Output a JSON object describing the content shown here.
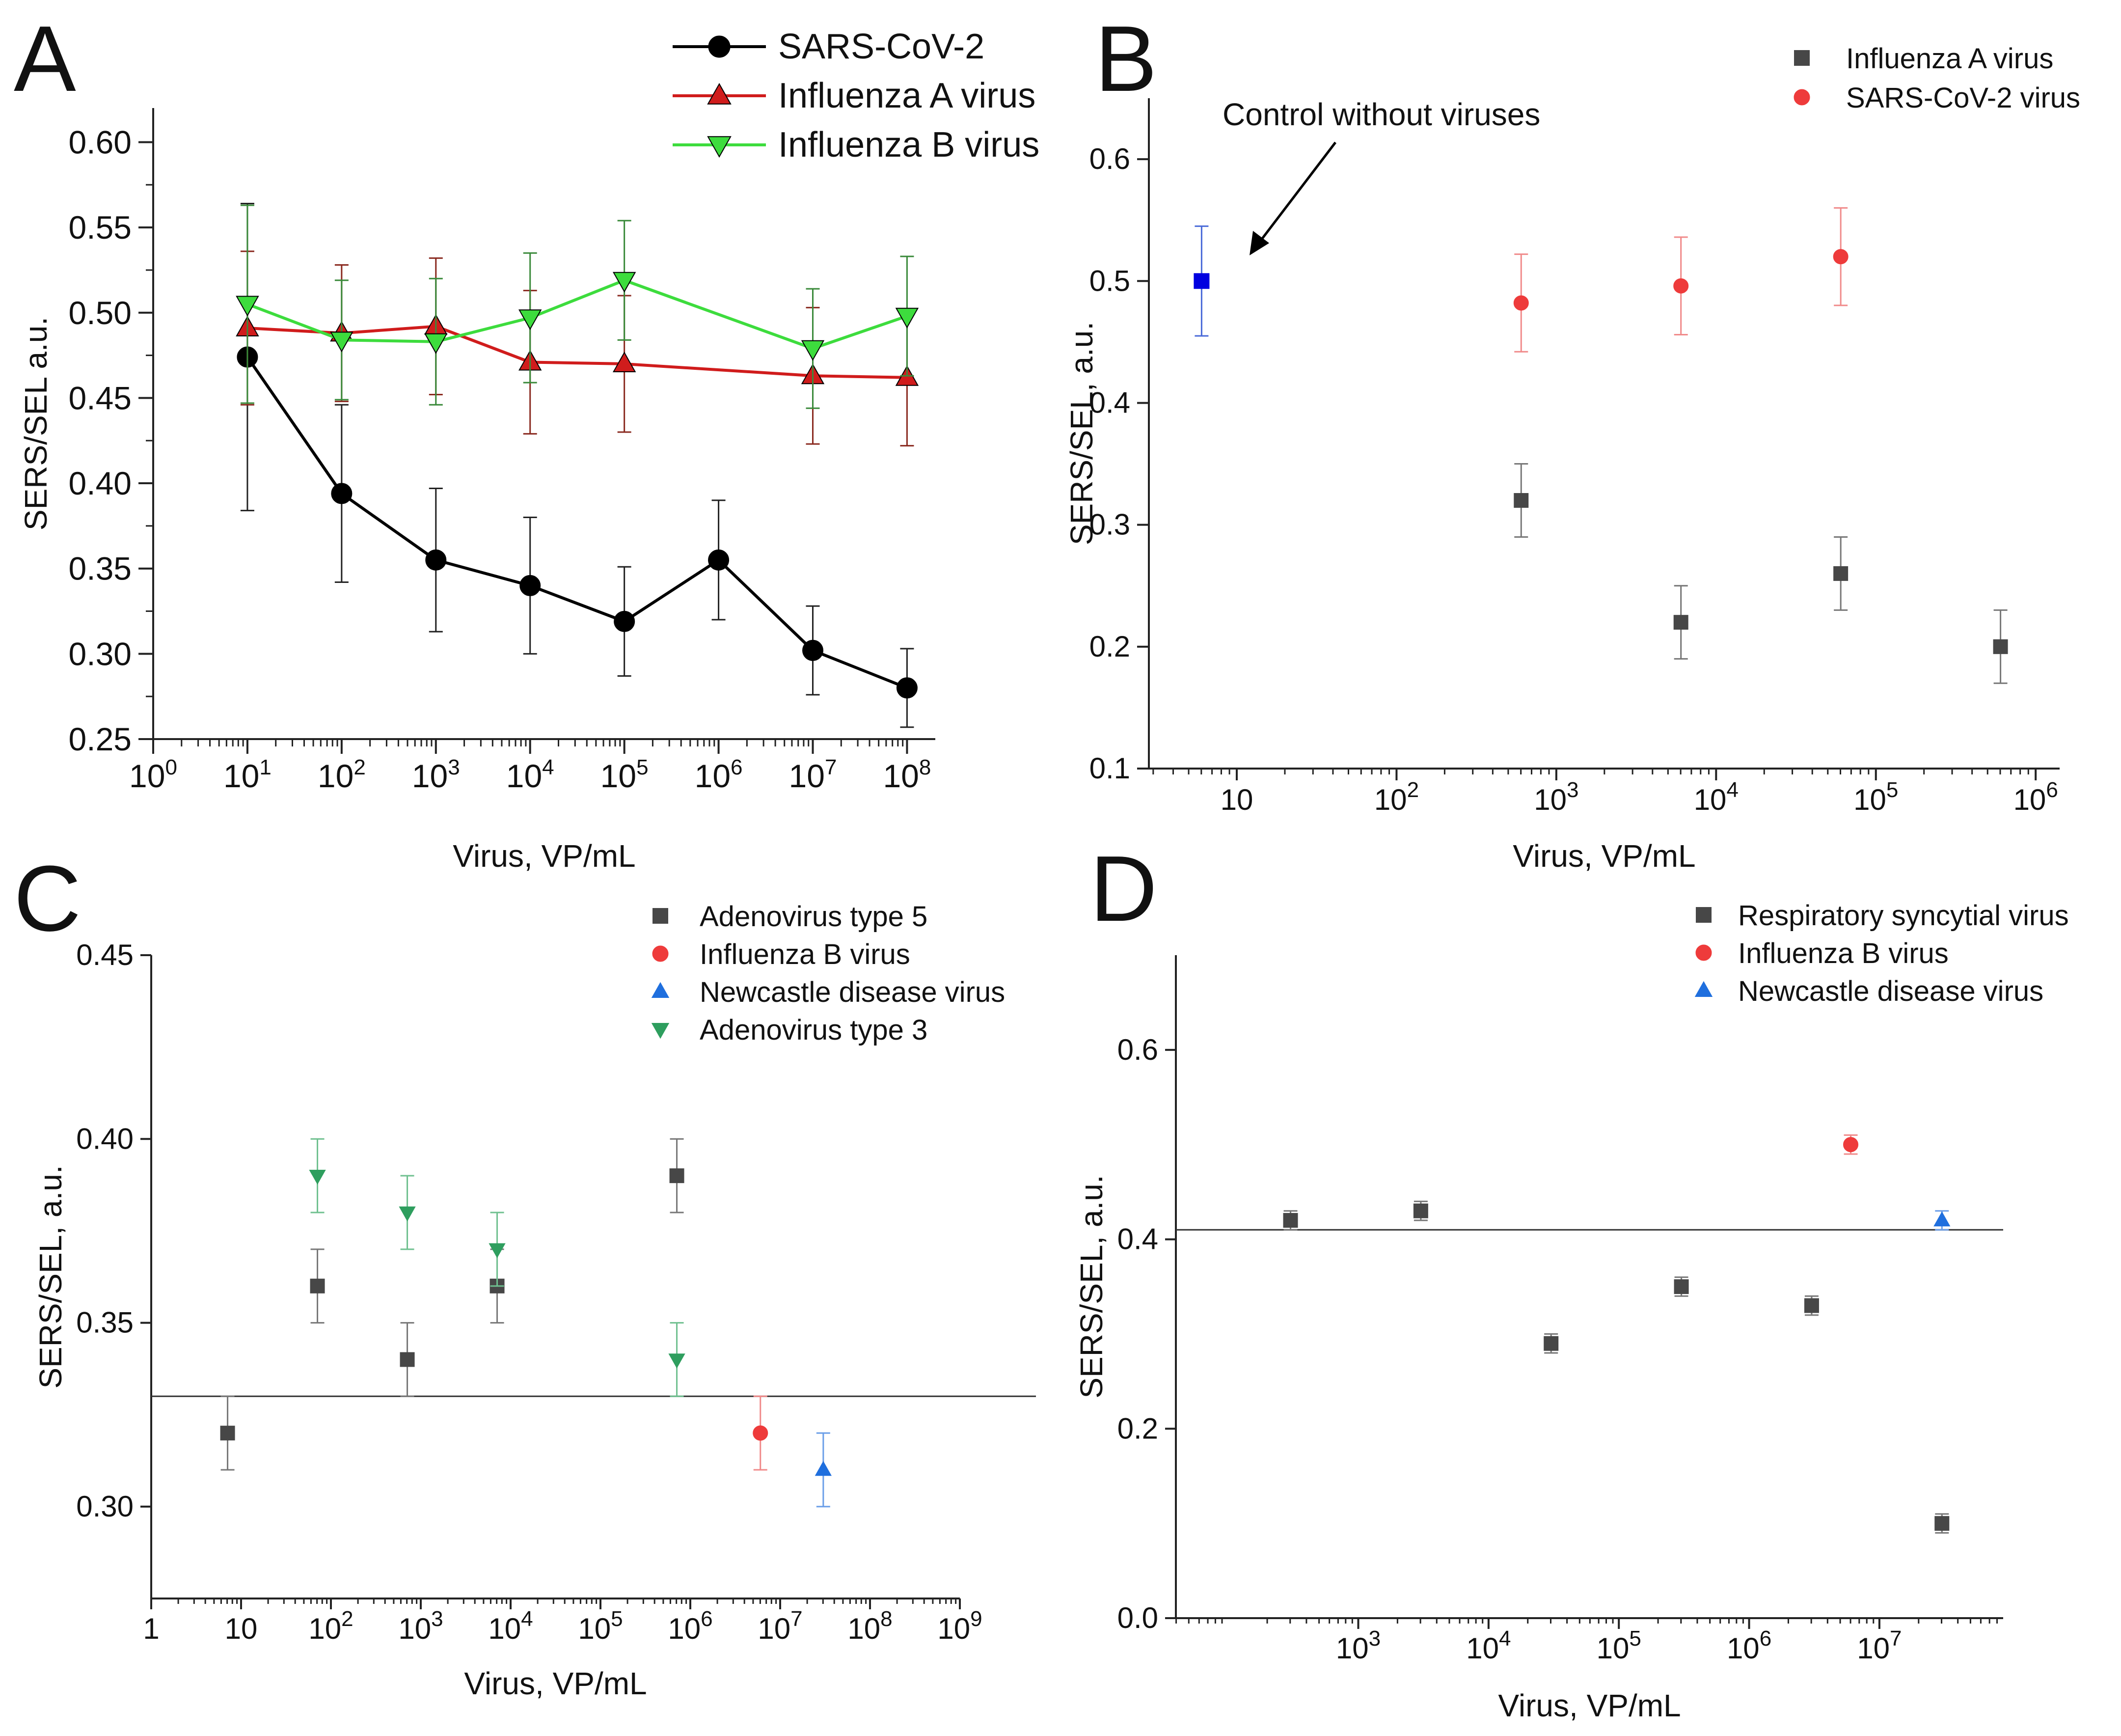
{
  "chart_data": [
    {
      "panel": "A",
      "type": "line",
      "xscale": "log10",
      "xlabel": "Virus, VP/mL",
      "ylabel": "SERS/SEL  a.u.",
      "ylim": [
        0.25,
        0.62
      ],
      "yticks": [
        0.25,
        0.3,
        0.35,
        0.4,
        0.45,
        0.5,
        0.55,
        0.6
      ],
      "ytick_labels": [
        "0.25",
        "0.30",
        "0.35",
        "0.40",
        "0.45",
        "0.50",
        "0.55",
        "0.60"
      ],
      "xticks": [
        0,
        1,
        2,
        3,
        4,
        5,
        6,
        7,
        8
      ],
      "xtick_labels": [
        "10⁰",
        "10¹",
        "10²",
        "10³",
        "10⁴",
        "10⁵",
        "10⁶",
        "10⁷",
        "10⁸"
      ],
      "legend_position": "top-right",
      "series": [
        {
          "name": "SARS-CoV-2",
          "color": "#000000",
          "marker": "circle",
          "x": [
            1,
            2,
            3,
            4,
            5,
            6,
            7,
            8
          ],
          "y": [
            0.474,
            0.394,
            0.355,
            0.34,
            0.319,
            0.355,
            0.302,
            0.28
          ],
          "err": [
            0.09,
            0.052,
            0.042,
            0.04,
            0.032,
            0.035,
            0.026,
            0.023
          ]
        },
        {
          "name": "Influenza A virus",
          "color": "#d01c1c",
          "marker": "triangle-up",
          "x": [
            1,
            2,
            3,
            4,
            5,
            7,
            8
          ],
          "y": [
            0.491,
            0.488,
            0.492,
            0.471,
            0.47,
            0.463,
            0.462
          ],
          "err": [
            0.045,
            0.04,
            0.04,
            0.042,
            0.04,
            0.04,
            0.04
          ]
        },
        {
          "name": "Influenza B virus",
          "color": "#3ddc3d",
          "marker": "triangle-down",
          "x": [
            1,
            2,
            3,
            4,
            5,
            7,
            8
          ],
          "y": [
            0.505,
            0.484,
            0.483,
            0.497,
            0.519,
            0.479,
            0.498
          ],
          "err": [
            0.058,
            0.035,
            0.037,
            0.038,
            0.035,
            0.035,
            0.035
          ]
        }
      ]
    },
    {
      "panel": "B",
      "type": "scatter",
      "xscale": "log10",
      "xlabel": "Virus, VP/mL",
      "ylabel": "SERS/SEL, a.u.",
      "xlim": [
        0.45,
        6.15
      ],
      "ylim": [
        0.1,
        0.65
      ],
      "yticks": [
        0.1,
        0.2,
        0.3,
        0.4,
        0.5,
        0.6
      ],
      "ytick_labels": [
        "0.1",
        "0.2",
        "0.3",
        "0.4",
        "0.5",
        "0.6"
      ],
      "xticks": [
        1,
        2,
        3,
        4,
        5,
        6
      ],
      "xtick_labels": [
        "10",
        "10²",
        "10³",
        "10⁴",
        "10⁵",
        "10⁶"
      ],
      "annotation": "Control without viruses",
      "control": {
        "x": 0.78,
        "y": 0.5,
        "err": 0.045,
        "color": "#0000e0",
        "marker": "square"
      },
      "legend_position": "top-right",
      "series": [
        {
          "name": "Influenza A virus",
          "color": "#474747",
          "marker": "square",
          "x": [
            2.78,
            3.78,
            4.78,
            5.78
          ],
          "y": [
            0.32,
            0.22,
            0.26,
            0.2
          ],
          "err": [
            0.03,
            0.03,
            0.03,
            0.03
          ]
        },
        {
          "name": "SARS-CoV-2 virus",
          "color": "#ee3b3b",
          "marker": "circle",
          "x": [
            2.78,
            3.78,
            4.78
          ],
          "y": [
            0.482,
            0.496,
            0.52
          ],
          "err": [
            0.04,
            0.04,
            0.04
          ]
        }
      ]
    },
    {
      "panel": "C",
      "type": "scatter",
      "xscale": "log10",
      "xlabel": "Virus, VP/mL",
      "ylabel": "SERS/SEL, a.u.",
      "xlim": [
        0,
        9
      ],
      "ylim": [
        0.275,
        0.45
      ],
      "yticks": [
        0.3,
        0.35,
        0.4,
        0.45
      ],
      "ytick_labels": [
        "0.30",
        "0.35",
        "0.40",
        "0.45"
      ],
      "xticks": [
        0,
        1,
        2,
        3,
        4,
        5,
        6,
        7,
        8,
        9
      ],
      "xtick_labels": [
        "1",
        "10",
        "10²",
        "10³",
        "10⁴",
        "10⁵",
        "10⁶",
        "10⁷",
        "10⁸",
        "10⁹"
      ],
      "reference_line": 0.33,
      "legend_position": "top-right",
      "series": [
        {
          "name": "Adenovirus type 5",
          "color": "#474747",
          "marker": "square",
          "x": [
            0.85,
            1.85,
            2.85,
            3.85,
            5.85
          ],
          "y": [
            0.32,
            0.36,
            0.34,
            0.36,
            0.39
          ],
          "err": [
            0.01,
            0.01,
            0.01,
            0.01,
            0.01
          ]
        },
        {
          "name": "Influenza B virus",
          "color": "#ee3b3b",
          "marker": "circle",
          "x": [
            6.78
          ],
          "y": [
            0.32
          ],
          "err": [
            0.01
          ]
        },
        {
          "name": "Newcastle disease virus",
          "color": "#1f6fde",
          "marker": "triangle-up",
          "x": [
            7.48
          ],
          "y": [
            0.31
          ],
          "err": [
            0.01
          ]
        },
        {
          "name": "Adenovirus type 3",
          "color": "#2e9e5e",
          "marker": "triangle-down",
          "x": [
            1.85,
            2.85,
            3.85,
            5.85
          ],
          "y": [
            0.39,
            0.38,
            0.37,
            0.34
          ],
          "err": [
            0.01,
            0.01,
            0.01,
            0.01
          ]
        }
      ]
    },
    {
      "panel": "D",
      "type": "scatter",
      "xscale": "log10",
      "xlabel": "Virus, VP/mL",
      "ylabel": "SERS/SEL, a.u.",
      "xlim": [
        1.6,
        7.95
      ],
      "ylim": [
        0.0,
        0.7
      ],
      "yticks": [
        0.0,
        0.2,
        0.4,
        0.6
      ],
      "ytick_labels": [
        "0.0",
        "0.2",
        "0.4",
        "0.6"
      ],
      "xticks": [
        3,
        4,
        5,
        6,
        7
      ],
      "xtick_labels": [
        "10³",
        "10⁴",
        "10⁵",
        "10⁶",
        "10⁷"
      ],
      "reference_line": 0.41,
      "legend_position": "top-right",
      "series": [
        {
          "name": "Respiratory syncytial virus",
          "color": "#474747",
          "marker": "square",
          "x": [
            2.48,
            3.48,
            4.48,
            5.48,
            6.48,
            7.48
          ],
          "y": [
            0.42,
            0.43,
            0.29,
            0.35,
            0.33,
            0.1
          ],
          "err": [
            0.01,
            0.01,
            0.01,
            0.01,
            0.01,
            0.01
          ]
        },
        {
          "name": "Influenza B virus",
          "color": "#ee3b3b",
          "marker": "circle",
          "x": [
            6.78
          ],
          "y": [
            0.5
          ],
          "err": [
            0.01
          ]
        },
        {
          "name": "Newcastle disease virus",
          "color": "#1f6fde",
          "marker": "triangle-up",
          "x": [
            7.48
          ],
          "y": [
            0.42
          ],
          "err": [
            0.01
          ]
        }
      ]
    }
  ]
}
